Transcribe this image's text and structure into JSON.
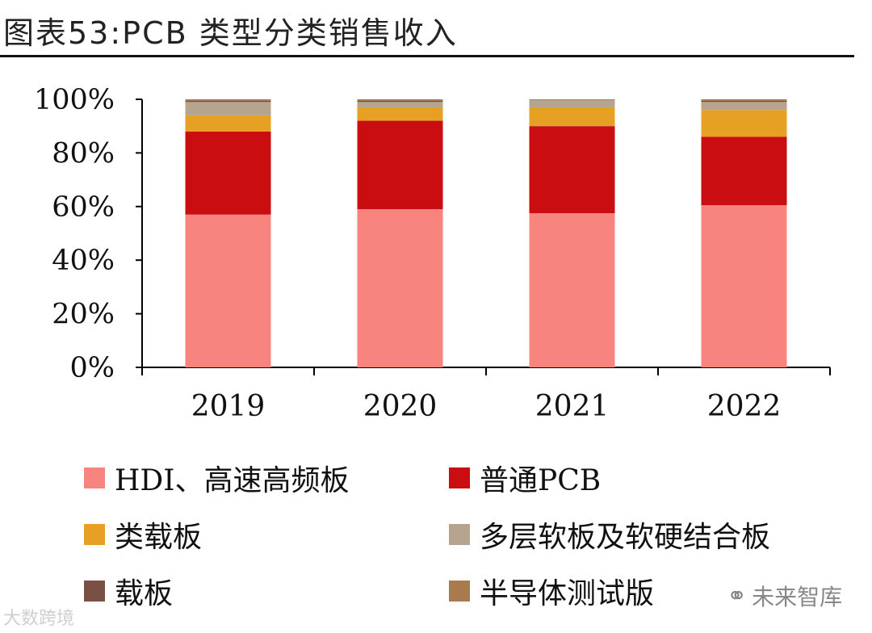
{
  "title": "图表53:PCB 类型分类销售收入",
  "chart_data": {
    "type": "bar",
    "stacked": true,
    "title": "图表53:PCB 类型分类销售收入",
    "xlabel": "",
    "ylabel": "",
    "ylim": [
      0,
      100
    ],
    "yticks": [
      "0%",
      "20%",
      "40%",
      "60%",
      "80%",
      "100%"
    ],
    "yticks_values": [
      0,
      20,
      40,
      60,
      80,
      100
    ],
    "categories": [
      "2019",
      "2020",
      "2021",
      "2022"
    ],
    "legend_position": "bottom",
    "series": [
      {
        "name": "HDI、高速高频板",
        "color": "#f88480",
        "values": [
          57,
          59,
          57.5,
          60.5
        ]
      },
      {
        "name": "普通PCB",
        "color": "#c90d10",
        "values": [
          31,
          33,
          32.5,
          25.5
        ]
      },
      {
        "name": "类载板",
        "color": "#e6a023",
        "values": [
          6,
          5,
          7,
          10
        ]
      },
      {
        "name": "多层软板及软硬结合板",
        "color": "#b7a48e",
        "values": [
          5,
          2,
          2.7,
          3
        ]
      },
      {
        "name": "载板",
        "color": "#7a4f44",
        "values": [
          0.5,
          0.5,
          0.1,
          0.5
        ]
      },
      {
        "name": "半导体测试版",
        "color": "#a87a4e",
        "values": [
          0.5,
          0.5,
          0.2,
          0.5
        ]
      }
    ]
  },
  "watermarks": {
    "left": "大数跨境",
    "right": "未来智库",
    "right_icon": "wechat-icon"
  }
}
